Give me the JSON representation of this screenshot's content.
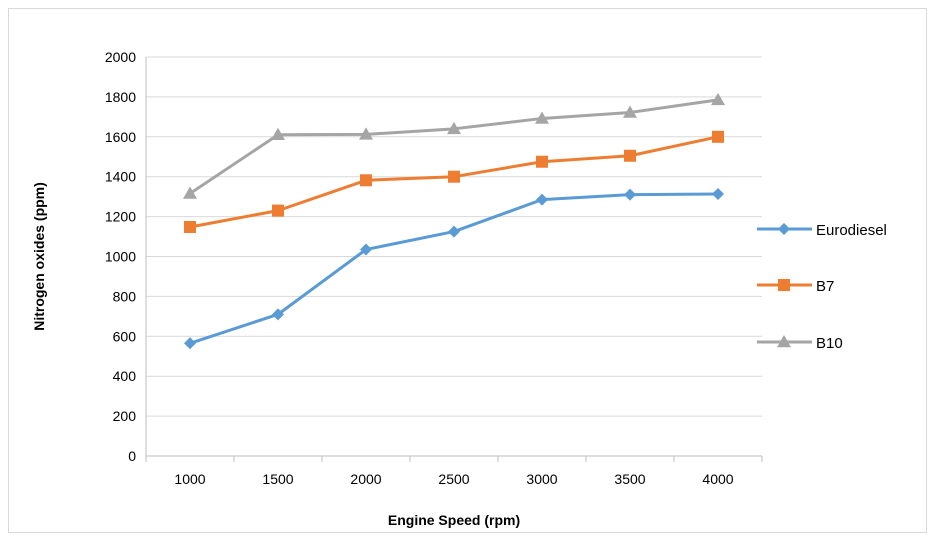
{
  "chart_data": {
    "type": "line",
    "title": "",
    "xlabel": "Engine Speed (rpm)",
    "ylabel": "Nitrogen oxides (ppm)",
    "categories": [
      "1000",
      "1500",
      "2000",
      "2500",
      "3000",
      "3500",
      "4000"
    ],
    "ylim": [
      0,
      2000
    ],
    "yticks": [
      0,
      200,
      400,
      600,
      800,
      1000,
      1200,
      1400,
      1600,
      1800,
      2000
    ],
    "grid": "horizontal",
    "legend_position": "right",
    "series": [
      {
        "name": "Eurodiesel",
        "color": "#5b9bd5",
        "marker": "diamond",
        "values": [
          565,
          710,
          1035,
          1125,
          1285,
          1310,
          1313
        ]
      },
      {
        "name": "B7",
        "color": "#ed7d31",
        "marker": "square",
        "values": [
          1148,
          1230,
          1382,
          1400,
          1475,
          1505,
          1600
        ]
      },
      {
        "name": "B10",
        "color": "#a5a5a5",
        "marker": "triangle",
        "values": [
          1316,
          1610,
          1612,
          1640,
          1692,
          1722,
          1785
        ]
      }
    ]
  }
}
